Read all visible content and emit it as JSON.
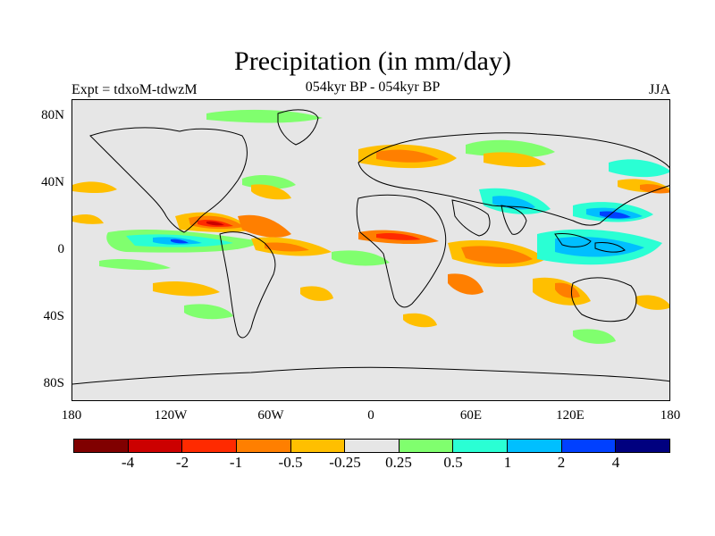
{
  "title": "Precipitation (in mm/day)",
  "subtitle": "054kyr BP - 054kyr BP",
  "experiment": "Expt = tdxoM-tdwzM",
  "season": "JJA",
  "lat_labels": [
    "80N",
    "40N",
    "0",
    "40S",
    "80S"
  ],
  "lon_labels": [
    "180",
    "120W",
    "60W",
    "0",
    "60E",
    "120E",
    "180"
  ],
  "colorbar": {
    "colors": [
      "#800000",
      "#cc0000",
      "#ff2a00",
      "#ff7f00",
      "#ffbf00",
      "#e6e6e6",
      "#80ff6e",
      "#2affd4",
      "#00bfff",
      "#0040ff",
      "#00007f"
    ],
    "labels": [
      "-4",
      "-2",
      "-1",
      "-0.5",
      "-0.25",
      "0.25",
      "0.5",
      "1",
      "2",
      "4"
    ]
  },
  "chart_data": {
    "type": "heatmap",
    "projection": "cylindrical-equidistant",
    "variable": "Precipitation difference",
    "units": "mm/day",
    "lon_range": [
      -180,
      180
    ],
    "lat_range": [
      -90,
      90
    ],
    "contour_levels": [
      -4,
      -2,
      -1,
      -0.5,
      -0.25,
      0.25,
      0.5,
      1,
      2,
      4
    ],
    "anomaly_regions": [
      {
        "lon": -105,
        "lat": 12,
        "value": -2
      },
      {
        "lon": -75,
        "lat": 14,
        "value": -1
      },
      {
        "lon": -60,
        "lat": 5,
        "value": -0.5
      },
      {
        "lon": -140,
        "lat": 3,
        "value": 2
      },
      {
        "lon": -110,
        "lat": 0,
        "value": 1
      },
      {
        "lon": 20,
        "lat": 8,
        "value": -1
      },
      {
        "lon": 65,
        "lat": -5,
        "value": -1
      },
      {
        "lon": 62,
        "lat": -20,
        "value": -0.5
      },
      {
        "lon": 95,
        "lat": -5,
        "value": 1
      },
      {
        "lon": 128,
        "lat": 12,
        "value": 2
      },
      {
        "lon": 150,
        "lat": 5,
        "value": 1
      },
      {
        "lon": 75,
        "lat": 25,
        "value": 1
      },
      {
        "lon": 30,
        "lat": 48,
        "value": -0.5
      },
      {
        "lon": 160,
        "lat": 45,
        "value": 1
      },
      {
        "lon": -170,
        "lat": 35,
        "value": -0.5
      }
    ]
  }
}
